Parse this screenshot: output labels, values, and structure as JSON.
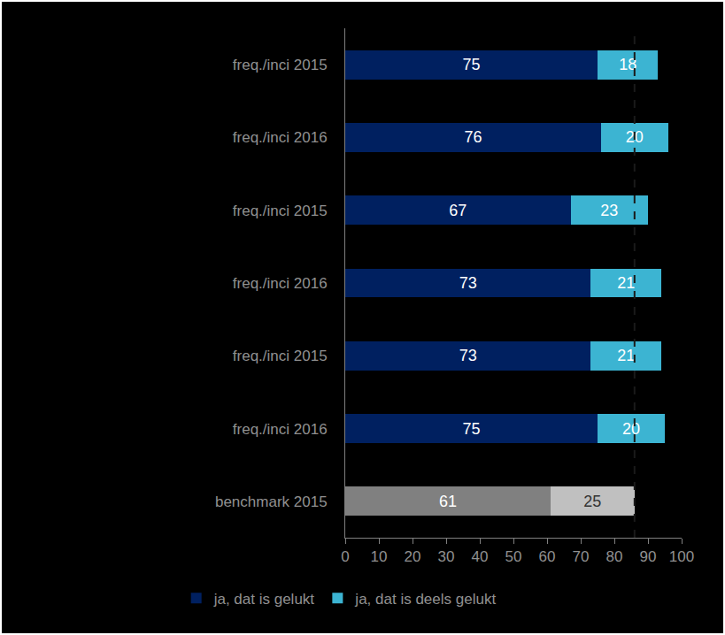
{
  "chart_data": {
    "type": "bar",
    "orientation": "horizontal",
    "stacked": true,
    "data_labels": true,
    "grid": false,
    "legend": "bottom",
    "categories": [
      "freq./inci 2015",
      "freq./inci 2016",
      "freq./inci 2015",
      "freq./inci 2016",
      "freq./inci 2015",
      "freq./inci 2016",
      "benchmark 2015"
    ],
    "series": [
      {
        "name": "ja, dat is gelukt",
        "colors": [
          "#002060",
          "#002060",
          "#002060",
          "#002060",
          "#002060",
          "#002060",
          "#808080"
        ],
        "values": [
          75,
          76,
          67,
          73,
          73,
          75,
          61
        ]
      },
      {
        "name": "ja, dat is deels gelukt",
        "colors": [
          "#3cb4d2",
          "#3cb4d2",
          "#3cb4d2",
          "#3cb4d2",
          "#3cb4d2",
          "#3cb4d2",
          "#c0c0c0"
        ],
        "values": [
          18,
          20,
          23,
          21,
          21,
          20,
          25
        ]
      }
    ],
    "xlim": [
      0,
      100
    ],
    "xticks": [
      0,
      10,
      20,
      30,
      40,
      50,
      60,
      70,
      80,
      90,
      100
    ],
    "reference_line": 86
  }
}
